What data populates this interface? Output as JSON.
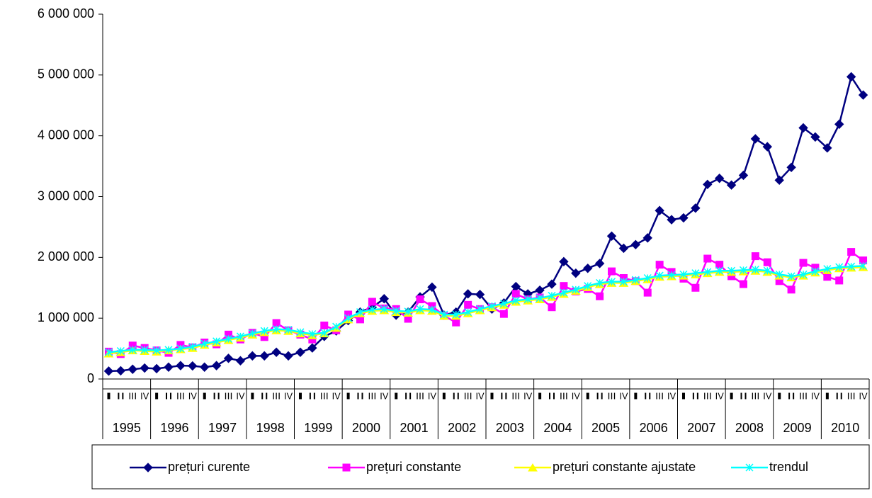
{
  "chart_data": {
    "type": "line",
    "categories": [
      "I",
      "II",
      "III",
      "IV",
      "I",
      "II",
      "III",
      "IV",
      "I",
      "II",
      "III",
      "IV",
      "I",
      "II",
      "III",
      "IV",
      "I",
      "II",
      "III",
      "IV",
      "I",
      "II",
      "III",
      "IV",
      "I",
      "II",
      "III",
      "IV",
      "I",
      "II",
      "III",
      "IV",
      "I",
      "II",
      "III",
      "IV",
      "I",
      "II",
      "III",
      "IV",
      "I",
      "II",
      "III",
      "IV",
      "I",
      "II",
      "III",
      "IV",
      "I",
      "II",
      "III",
      "IV",
      "I",
      "II",
      "III",
      "IV",
      "I",
      "II",
      "III",
      "IV",
      "I",
      "II",
      "III",
      "IV"
    ],
    "groups": [
      "1995",
      "1996",
      "1997",
      "1998",
      "1999",
      "2000",
      "2001",
      "2002",
      "2003",
      "2004",
      "2005",
      "2006",
      "2007",
      "2008",
      "2009",
      "2010"
    ],
    "series": [
      {
        "name": "prețuri curente",
        "color": "#000080",
        "marker": "diamond",
        "values": [
          130000,
          135000,
          160000,
          180000,
          170000,
          195000,
          220000,
          215000,
          195000,
          220000,
          340000,
          300000,
          380000,
          380000,
          440000,
          380000,
          440000,
          510000,
          700000,
          790000,
          960000,
          1100000,
          1180000,
          1320000,
          1050000,
          1100000,
          1350000,
          1510000,
          1050000,
          1100000,
          1400000,
          1390000,
          1150000,
          1250000,
          1520000,
          1400000,
          1460000,
          1560000,
          1930000,
          1740000,
          1820000,
          1900000,
          2350000,
          2150000,
          2210000,
          2320000,
          2770000,
          2620000,
          2650000,
          2810000,
          3200000,
          3300000,
          3190000,
          3350000,
          3950000,
          3820000,
          3270000,
          3480000,
          4130000,
          3980000,
          3800000,
          4190000,
          4970000,
          4670000
        ]
      },
      {
        "name": "prețuri constante",
        "color": "#ff00ff",
        "marker": "square",
        "values": [
          450000,
          410000,
          550000,
          510000,
          470000,
          430000,
          560000,
          520000,
          600000,
          570000,
          730000,
          650000,
          760000,
          690000,
          920000,
          800000,
          730000,
          650000,
          880000,
          800000,
          1060000,
          980000,
          1270000,
          1160000,
          1150000,
          990000,
          1310000,
          1200000,
          1040000,
          930000,
          1220000,
          1150000,
          1180000,
          1070000,
          1400000,
          1310000,
          1340000,
          1180000,
          1530000,
          1440000,
          1480000,
          1360000,
          1770000,
          1660000,
          1610000,
          1420000,
          1880000,
          1760000,
          1650000,
          1500000,
          1980000,
          1880000,
          1690000,
          1560000,
          2020000,
          1920000,
          1610000,
          1470000,
          1910000,
          1830000,
          1680000,
          1620000,
          2090000,
          1950000
        ]
      },
      {
        "name": "prețuri constante ajustate",
        "color": "#ffff00",
        "marker": "triangle",
        "values": [
          420000,
          440000,
          470000,
          460000,
          450000,
          470000,
          490000,
          510000,
          560000,
          600000,
          640000,
          680000,
          730000,
          770000,
          800000,
          790000,
          750000,
          720000,
          750000,
          840000,
          980000,
          1080000,
          1120000,
          1130000,
          1100000,
          1090000,
          1130000,
          1120000,
          1040000,
          1040000,
          1080000,
          1130000,
          1180000,
          1220000,
          1270000,
          1290000,
          1310000,
          1350000,
          1400000,
          1450000,
          1510000,
          1560000,
          1580000,
          1580000,
          1610000,
          1640000,
          1680000,
          1690000,
          1700000,
          1720000,
          1740000,
          1760000,
          1760000,
          1770000,
          1780000,
          1760000,
          1700000,
          1670000,
          1700000,
          1750000,
          1790000,
          1820000,
          1830000,
          1840000
        ]
      },
      {
        "name": "trendul",
        "color": "#00ffff",
        "marker": "x",
        "values": [
          440000,
          460000,
          480000,
          480000,
          470000,
          480000,
          500000,
          530000,
          580000,
          620000,
          660000,
          700000,
          750000,
          790000,
          820000,
          810000,
          770000,
          740000,
          760000,
          860000,
          1000000,
          1100000,
          1140000,
          1150000,
          1120000,
          1110000,
          1150000,
          1140000,
          1060000,
          1060000,
          1100000,
          1150000,
          1200000,
          1240000,
          1290000,
          1310000,
          1330000,
          1370000,
          1420000,
          1470000,
          1530000,
          1580000,
          1600000,
          1600000,
          1630000,
          1660000,
          1700000,
          1710000,
          1720000,
          1740000,
          1760000,
          1780000,
          1780000,
          1790000,
          1800000,
          1780000,
          1720000,
          1690000,
          1720000,
          1770000,
          1810000,
          1840000,
          1850000,
          1860000
        ]
      }
    ],
    "ylim": [
      0,
      6000000
    ],
    "yticks": [
      0,
      {
        "value": 1000000,
        "label": "1 000 000"
      },
      {
        "value": 2000000,
        "label": "2 000 000"
      },
      {
        "value": 3000000,
        "label": "3 000 000"
      },
      {
        "value": 4000000,
        "label": "4 000 000"
      },
      {
        "value": 5000000,
        "label": "5 000 000"
      },
      {
        "value": 6000000,
        "label": "6 000 000"
      }
    ],
    "legend": "bottom"
  }
}
